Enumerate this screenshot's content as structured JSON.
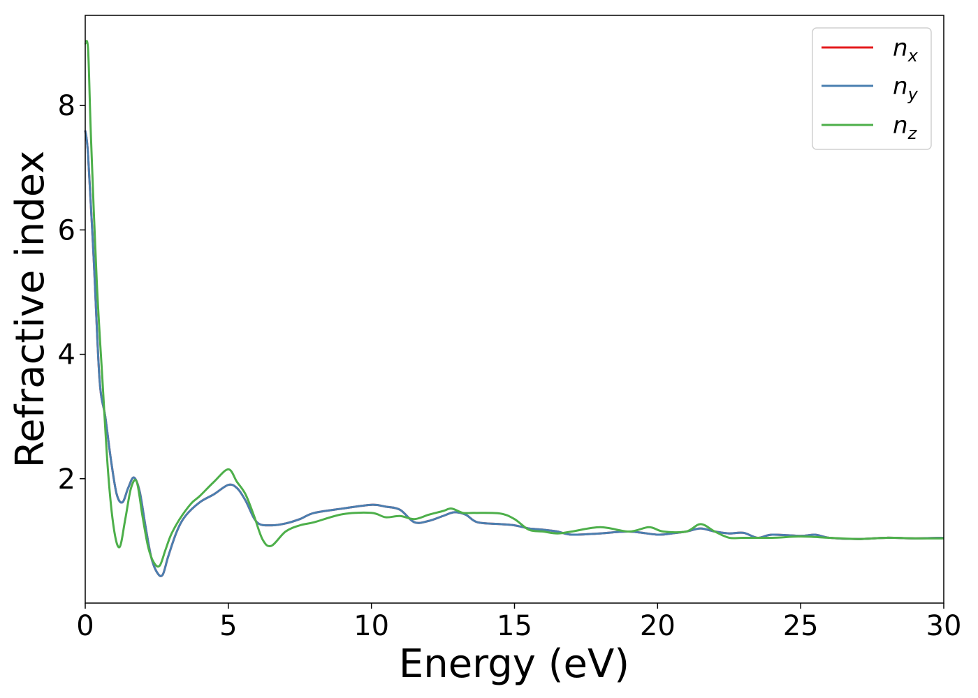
{
  "chart_data": {
    "type": "line",
    "title": "",
    "xlabel": "Energy (eV)",
    "ylabel": "Refractive index",
    "xlim": [
      0,
      30
    ],
    "ylim": [
      0,
      9.45
    ],
    "xticks": [
      0,
      5,
      10,
      15,
      20,
      25,
      30
    ],
    "yticks": [
      2,
      4,
      6,
      8
    ],
    "grid": false,
    "legend_position": "top-right",
    "series": [
      {
        "name": "n_x",
        "legend_main": "n",
        "legend_sub": "x",
        "color": "#e41a1c",
        "x": [
          0,
          0.1,
          0.3,
          0.5,
          0.7,
          0.9,
          1.1,
          1.3,
          1.5,
          1.7,
          1.9,
          2.1,
          2.3,
          2.5,
          2.7,
          2.9,
          3.2,
          3.5,
          4.0,
          4.5,
          5.0,
          5.3,
          5.6,
          6.0,
          6.5,
          7.0,
          7.5,
          8.0,
          9.0,
          10.0,
          10.5,
          11.0,
          11.5,
          12.0,
          12.5,
          12.9,
          13.3,
          13.7,
          14.5,
          15.0,
          15.5,
          16.0,
          16.5,
          17.0,
          18.0,
          19.0,
          20.0,
          20.5,
          21.0,
          21.5,
          22.0,
          22.5,
          23.0,
          23.5,
          24.0,
          25.0,
          25.5,
          26.0,
          27.0,
          28.0,
          29.0,
          30.0
        ],
        "y": [
          7.6,
          7.2,
          5.5,
          3.6,
          3.0,
          2.3,
          1.75,
          1.62,
          1.85,
          2.02,
          1.8,
          1.25,
          0.75,
          0.5,
          0.45,
          0.75,
          1.15,
          1.4,
          1.62,
          1.75,
          1.9,
          1.85,
          1.65,
          1.3,
          1.25,
          1.28,
          1.35,
          1.45,
          1.52,
          1.58,
          1.55,
          1.5,
          1.3,
          1.32,
          1.4,
          1.46,
          1.42,
          1.3,
          1.27,
          1.25,
          1.2,
          1.18,
          1.15,
          1.1,
          1.12,
          1.15,
          1.1,
          1.12,
          1.15,
          1.2,
          1.15,
          1.12,
          1.13,
          1.05,
          1.1,
          1.08,
          1.1,
          1.05,
          1.03,
          1.05,
          1.04,
          1.05
        ]
      },
      {
        "name": "n_y",
        "legend_main": "n",
        "legend_sub": "y",
        "color": "#4a7fb0",
        "x": [
          0,
          0.1,
          0.3,
          0.5,
          0.7,
          0.9,
          1.1,
          1.3,
          1.5,
          1.7,
          1.9,
          2.1,
          2.3,
          2.5,
          2.7,
          2.9,
          3.2,
          3.5,
          4.0,
          4.5,
          5.0,
          5.3,
          5.6,
          6.0,
          6.5,
          7.0,
          7.5,
          8.0,
          9.0,
          10.0,
          10.5,
          11.0,
          11.5,
          12.0,
          12.5,
          12.9,
          13.3,
          13.7,
          14.5,
          15.0,
          15.5,
          16.0,
          16.5,
          17.0,
          18.0,
          19.0,
          20.0,
          20.5,
          21.0,
          21.5,
          22.0,
          22.5,
          23.0,
          23.5,
          24.0,
          25.0,
          25.5,
          26.0,
          27.0,
          28.0,
          29.0,
          30.0
        ],
        "y": [
          7.6,
          7.2,
          5.5,
          3.6,
          3.0,
          2.3,
          1.75,
          1.62,
          1.85,
          2.02,
          1.8,
          1.25,
          0.75,
          0.5,
          0.45,
          0.75,
          1.15,
          1.4,
          1.62,
          1.75,
          1.9,
          1.85,
          1.65,
          1.3,
          1.25,
          1.28,
          1.35,
          1.45,
          1.52,
          1.58,
          1.55,
          1.5,
          1.3,
          1.32,
          1.4,
          1.46,
          1.42,
          1.3,
          1.27,
          1.25,
          1.2,
          1.18,
          1.15,
          1.1,
          1.12,
          1.15,
          1.1,
          1.12,
          1.15,
          1.2,
          1.15,
          1.12,
          1.13,
          1.05,
          1.1,
          1.08,
          1.1,
          1.05,
          1.03,
          1.05,
          1.04,
          1.05
        ]
      },
      {
        "name": "n_z",
        "legend_main": "n",
        "legend_sub": "z",
        "color": "#4daf4a",
        "x": [
          0,
          0.1,
          0.2,
          0.4,
          0.6,
          0.8,
          1.0,
          1.2,
          1.4,
          1.6,
          1.8,
          2.0,
          2.2,
          2.4,
          2.6,
          2.8,
          3.0,
          3.3,
          3.7,
          4.0,
          4.5,
          5.0,
          5.3,
          5.6,
          5.9,
          6.2,
          6.5,
          7.0,
          7.5,
          8.0,
          9.0,
          10.0,
          10.5,
          11.0,
          11.5,
          12.0,
          12.5,
          12.8,
          13.2,
          13.6,
          14.5,
          15.0,
          15.5,
          16.0,
          16.5,
          17.0,
          18.0,
          19.0,
          19.7,
          20.2,
          21.0,
          21.5,
          22.0,
          22.5,
          23.0,
          24.0,
          25.0,
          26.0,
          27.0,
          28.0,
          29.0,
          30.0
        ],
        "y": [
          9.0,
          8.9,
          7.5,
          5.2,
          3.6,
          2.1,
          1.2,
          0.9,
          1.35,
          1.85,
          1.95,
          1.4,
          0.9,
          0.65,
          0.6,
          0.85,
          1.1,
          1.35,
          1.6,
          1.72,
          1.95,
          2.15,
          1.95,
          1.75,
          1.4,
          1.02,
          0.92,
          1.15,
          1.25,
          1.3,
          1.43,
          1.45,
          1.38,
          1.4,
          1.35,
          1.42,
          1.48,
          1.52,
          1.45,
          1.45,
          1.44,
          1.35,
          1.18,
          1.15,
          1.12,
          1.15,
          1.22,
          1.15,
          1.22,
          1.15,
          1.15,
          1.27,
          1.15,
          1.05,
          1.05,
          1.05,
          1.07,
          1.05,
          1.03,
          1.05,
          1.04,
          1.04
        ]
      }
    ]
  }
}
